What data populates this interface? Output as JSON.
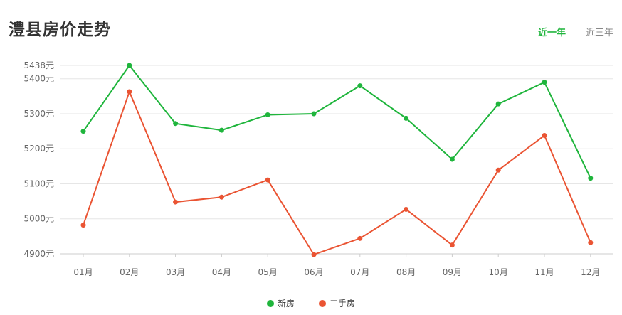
{
  "page": {
    "title": "澧县房价走势"
  },
  "tabs": [
    {
      "label": "近一年",
      "active": true
    },
    {
      "label": "近三年",
      "active": false
    }
  ],
  "chart_data": {
    "type": "line",
    "categories": [
      "01月",
      "02月",
      "03月",
      "04月",
      "05月",
      "06月",
      "07月",
      "08月",
      "09月",
      "10月",
      "11月",
      "12月"
    ],
    "series": [
      {
        "name": "新房",
        "color": "#1fb53c",
        "values": [
          5250,
          5438,
          5272,
          5253,
          5297,
          5300,
          5380,
          5287,
          5170,
          5328,
          5390,
          5116
        ]
      },
      {
        "name": "二手房",
        "color": "#ea5433",
        "values": [
          4982,
          5363,
          5048,
          5062,
          5111,
          4898,
          4944,
          5027,
          4925,
          5139,
          5238,
          4932
        ]
      }
    ],
    "yticks": [
      4900,
      5000,
      5100,
      5200,
      5300,
      5400,
      5438
    ],
    "ytick_labels": [
      "4900元",
      "5000元",
      "5100元",
      "5200元",
      "5300元",
      "5400元",
      "5438元"
    ],
    "ylim": [
      4900,
      5438
    ],
    "grid": true,
    "legend_position": "bottom"
  }
}
